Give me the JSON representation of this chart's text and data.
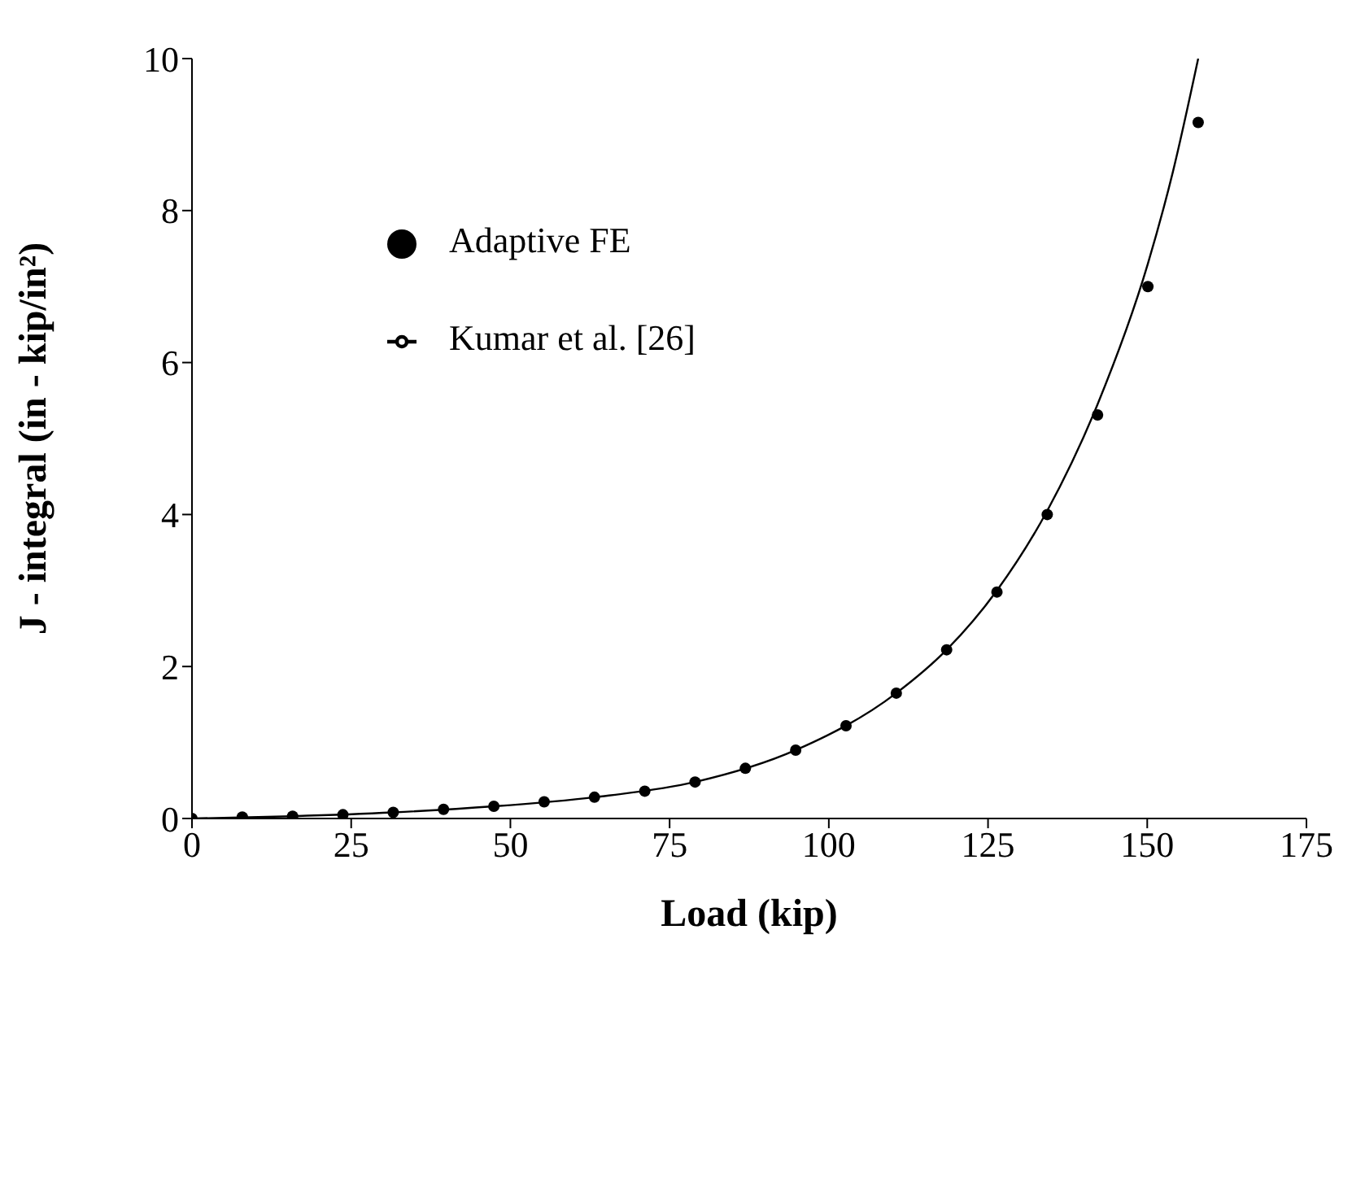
{
  "chart_data": {
    "type": "line",
    "xlabel": "Load (kip)",
    "ylabel": "J - integral (in - kip/in²)",
    "xlim": [
      0,
      175
    ],
    "xticks": [
      0,
      25,
      50,
      75,
      100,
      125,
      150,
      175
    ],
    "ylim": [
      0,
      10
    ],
    "yticks": [
      0,
      2,
      4,
      6,
      8,
      10
    ],
    "grid": false,
    "legend": "top left",
    "series": [
      {
        "name": "Kumar et al. [26]",
        "color": "#000000",
        "marker": "none",
        "line_style": "solid",
        "x": [
          0,
          15.8,
          31.6,
          47.4,
          63.2,
          79,
          94.8,
          110.6,
          118.5,
          126.4,
          134.3,
          142.2,
          150.1,
          154,
          158
        ],
        "values": [
          0,
          0.03,
          0.08,
          0.16,
          0.28,
          0.48,
          0.9,
          1.65,
          2.22,
          3.0,
          4.05,
          5.45,
          7.3,
          8.5,
          10
        ]
      },
      {
        "name": "Adaptive FE",
        "type": "scatter",
        "color": "#000000",
        "marker": "circle",
        "x": [
          0,
          7.9,
          15.8,
          23.7,
          31.6,
          39.5,
          47.4,
          55.3,
          63.2,
          71.1,
          79,
          86.9,
          94.8,
          102.7,
          110.6,
          118.5,
          126.4,
          134.3,
          142.2,
          150.1,
          158
        ],
        "values": [
          0,
          0.02,
          0.03,
          0.05,
          0.08,
          0.12,
          0.16,
          0.22,
          0.28,
          0.36,
          0.48,
          0.66,
          0.9,
          1.22,
          1.65,
          2.22,
          2.98,
          4.0,
          5.31,
          7.0,
          9.16
        ]
      }
    ]
  }
}
